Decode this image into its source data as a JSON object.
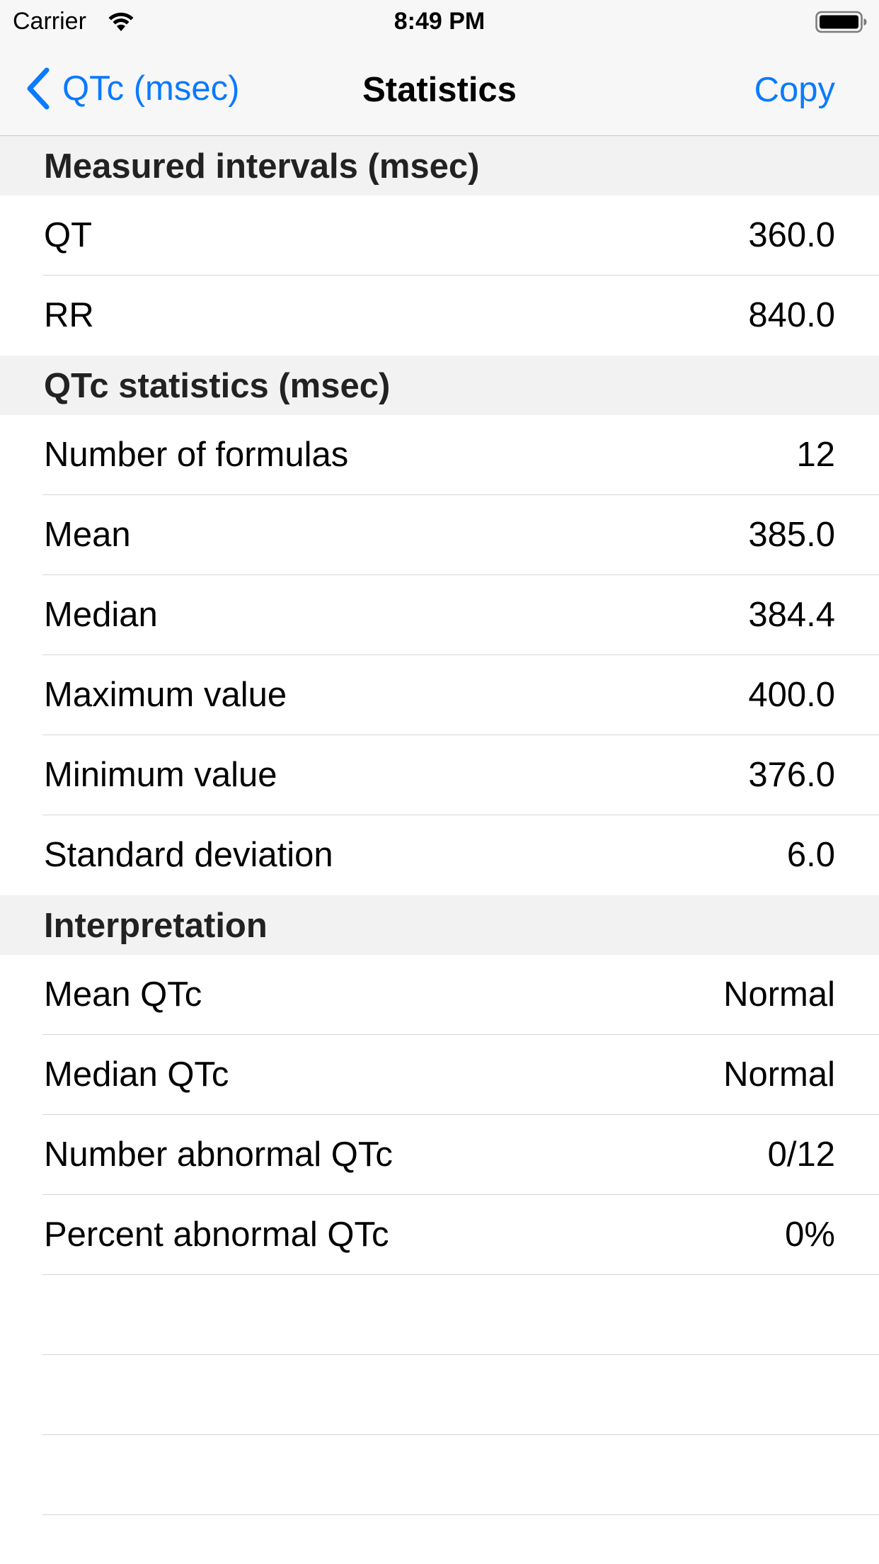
{
  "status_bar": {
    "carrier": "Carrier",
    "time": "8:49 PM"
  },
  "nav": {
    "back_label": "QTc (msec)",
    "title": "Statistics",
    "copy_label": "Copy"
  },
  "colors": {
    "accent": "#0a7aff",
    "section_background": "#f2f2f2"
  },
  "sections": [
    {
      "header": "Measured intervals (msec)",
      "rows": [
        {
          "label": "QT",
          "value": "360.0"
        },
        {
          "label": "RR",
          "value": "840.0"
        }
      ]
    },
    {
      "header": "QTc statistics (msec)",
      "rows": [
        {
          "label": "Number of formulas",
          "value": "12"
        },
        {
          "label": "Mean",
          "value": "385.0"
        },
        {
          "label": "Median",
          "value": "384.4"
        },
        {
          "label": "Maximum value",
          "value": "400.0"
        },
        {
          "label": "Minimum value",
          "value": "376.0"
        },
        {
          "label": "Standard deviation",
          "value": "6.0"
        }
      ]
    },
    {
      "header": "Interpretation",
      "rows": [
        {
          "label": "Mean QTc",
          "value": "Normal"
        },
        {
          "label": "Median QTc",
          "value": "Normal"
        },
        {
          "label": "Number abnormal QTc",
          "value": "0/12"
        },
        {
          "label": "Percent abnormal QTc",
          "value": "0%"
        }
      ]
    }
  ]
}
